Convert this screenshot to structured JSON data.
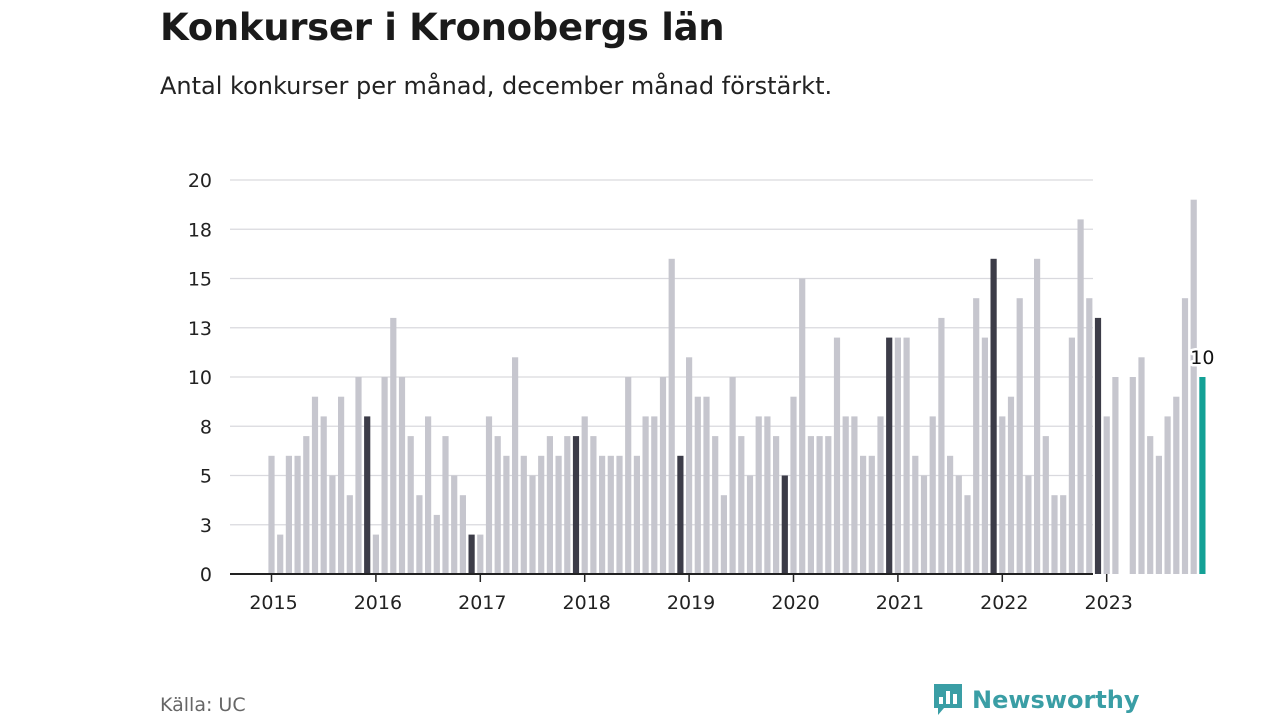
{
  "title": "Konkurser i Kronobergs län",
  "subtitle": "Antal konkurser per månad, december månad förstärkt.",
  "source": "Källa: UC",
  "brand": "Newsworthy",
  "colors": {
    "regular": "#c6c6ce",
    "december": "#3c3c48",
    "latest": "#14a196",
    "grid": "#d9d9de",
    "axis": "#222222",
    "brand": "#3a9ea5"
  },
  "chart_data": {
    "type": "bar",
    "ylim": [
      0,
      20
    ],
    "yticks": [
      {
        "value": 0,
        "label": "0"
      },
      {
        "value": 2.5,
        "label": "3"
      },
      {
        "value": 5,
        "label": "5"
      },
      {
        "value": 7.5,
        "label": "8"
      },
      {
        "value": 10,
        "label": "10"
      },
      {
        "value": 12.5,
        "label": "13"
      },
      {
        "value": 15,
        "label": "15"
      },
      {
        "value": 17.5,
        "label": "18"
      },
      {
        "value": 20,
        "label": "20"
      }
    ],
    "xticks": [
      "2015",
      "2016",
      "2017",
      "2018",
      "2019",
      "2020",
      "2021",
      "2022",
      "2023"
    ],
    "start": "2015-01",
    "end_label": "10",
    "values": [
      6,
      2,
      6,
      6,
      7,
      9,
      8,
      5,
      9,
      4,
      10,
      8,
      2,
      10,
      13,
      10,
      7,
      4,
      8,
      3,
      7,
      5,
      4,
      2,
      2,
      8,
      7,
      6,
      11,
      6,
      5,
      6,
      7,
      6,
      7,
      7,
      8,
      7,
      6,
      6,
      6,
      10,
      6,
      8,
      8,
      10,
      16,
      6,
      11,
      9,
      9,
      7,
      4,
      10,
      7,
      5,
      8,
      8,
      7,
      5,
      9,
      15,
      7,
      7,
      7,
      12,
      8,
      8,
      6,
      6,
      8,
      12,
      12,
      12,
      6,
      5,
      8,
      13,
      6,
      5,
      4,
      14,
      12,
      16,
      8,
      9,
      14,
      5,
      16,
      7,
      4,
      4,
      12,
      18,
      14,
      13,
      8,
      10,
      0,
      10,
      11,
      7,
      6,
      8,
      9,
      14,
      19,
      10
    ]
  }
}
